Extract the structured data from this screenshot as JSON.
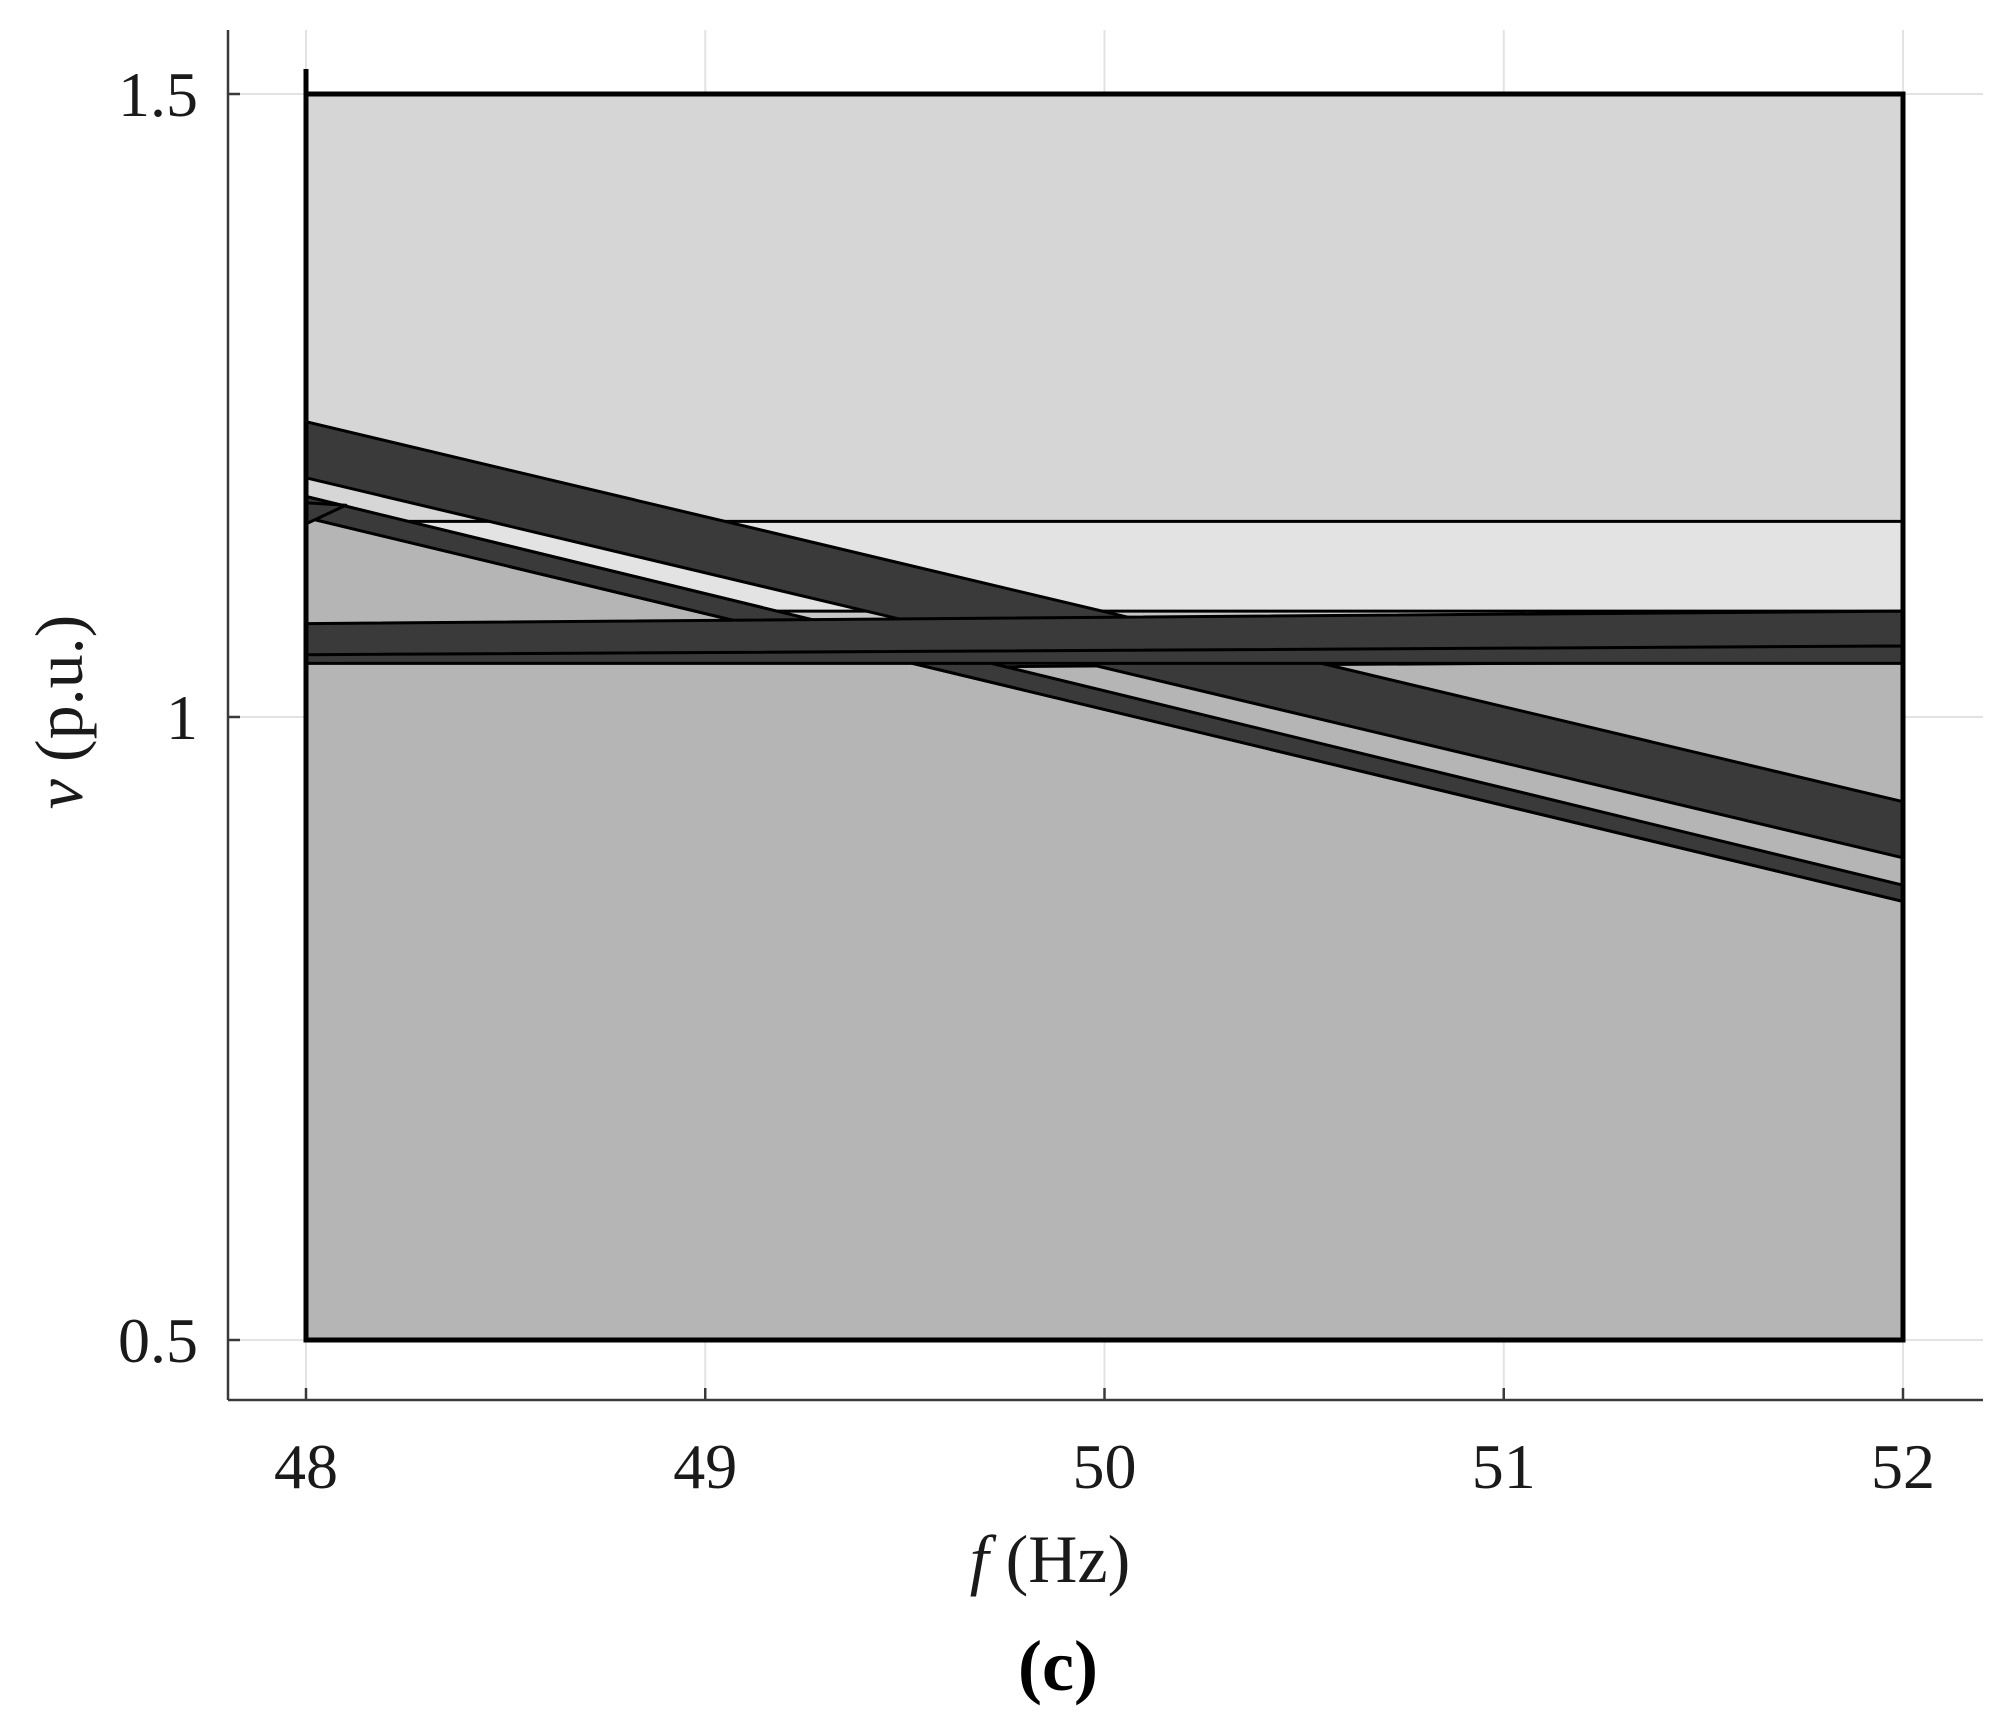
{
  "chart_data": {
    "type": "area",
    "xlabel_symbol": "f",
    "xlabel_unit": " (Hz)",
    "ylabel_symbol": "v",
    "ylabel_unit": " (p.u.)",
    "caption": "(c)",
    "xlim": [
      47.8,
      52.2
    ],
    "ylim": [
      0.45,
      1.55
    ],
    "xticks": [
      48,
      49,
      50,
      51,
      52
    ],
    "xtick_labels": [
      "48",
      "49",
      "50",
      "51",
      "52"
    ],
    "yticks": [
      0.5,
      1,
      1.5
    ],
    "ytick_labels": [
      "0.5",
      "1",
      "1.5"
    ],
    "grid": true,
    "regions": [
      {
        "fill": "#d6d6d6",
        "polygon": [
          [
            48,
            1.5
          ],
          [
            52,
            1.5
          ],
          [
            52,
            0.5
          ],
          [
            48,
            0.5
          ]
        ]
      },
      {
        "fill": "#e3e3e3",
        "polygon": [
          [
            48,
            1.157
          ],
          [
            52,
            1.157
          ],
          [
            52,
            0.5
          ],
          [
            48,
            0.5
          ]
        ]
      },
      {
        "fill": "#c6c6c6",
        "polygon": [
          [
            48,
            1.085
          ],
          [
            52,
            1.085
          ],
          [
            52,
            0.5
          ],
          [
            48,
            0.5
          ]
        ]
      },
      {
        "fill": "#c6c6c6",
        "polygon": [
          [
            48,
            1.177
          ],
          [
            52,
            0.865
          ],
          [
            52,
            0.5
          ],
          [
            48,
            0.5
          ]
        ]
      },
      {
        "fill": "#b5b5b5",
        "polygon": [
          [
            48,
            1.037
          ],
          [
            52,
            1.045
          ],
          [
            52,
            0.5
          ],
          [
            48,
            0.5
          ]
        ]
      },
      {
        "fill": "#b5b5b5",
        "polygon": [
          [
            48,
            1.16
          ],
          [
            52,
            0.852
          ],
          [
            52,
            0.5
          ],
          [
            48,
            0.5
          ]
        ]
      },
      {
        "fill": "#3a3a3a",
        "polygon": [
          [
            48,
            1.237
          ],
          [
            52,
            0.932
          ],
          [
            52,
            0.887
          ],
          [
            48,
            1.192
          ]
        ]
      },
      {
        "fill": "#3a3a3a",
        "polygon": [
          [
            48,
            1.177
          ],
          [
            52,
            0.865
          ],
          [
            52,
            0.852
          ],
          [
            48,
            1.16
          ]
        ]
      },
      {
        "fill": "#3a3a3a",
        "polygon": [
          [
            48,
            1.075
          ],
          [
            52,
            1.085
          ],
          [
            52,
            1.057
          ],
          [
            48,
            1.047
          ]
        ]
      },
      {
        "fill": "#3a3a3a",
        "polygon": [
          [
            48,
            1.05
          ],
          [
            52,
            1.057
          ],
          [
            52,
            1.043
          ],
          [
            48,
            1.043
          ]
        ]
      },
      {
        "fill": "#3a3a3a",
        "polygon": [
          [
            48,
            1.172
          ],
          [
            48.1,
            1.17
          ],
          [
            48,
            1.155
          ]
        ]
      }
    ]
  }
}
